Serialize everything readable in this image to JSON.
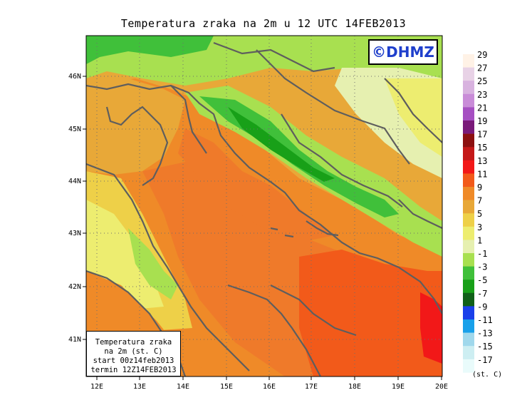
{
  "title": "Temperatura zraka na 2m u 12 UTC 14FEB2013",
  "watermark": "©DHMZ",
  "lat_labels": [
    "46N",
    "45N",
    "44N",
    "43N",
    "42N",
    "41N"
  ],
  "lon_labels": [
    "12E",
    "13E",
    "14E",
    "15E",
    "16E",
    "17E",
    "18E",
    "19E",
    "20E"
  ],
  "colorbar": {
    "labels": [
      "29",
      "27",
      "25",
      "23",
      "21",
      "19",
      "17",
      "15",
      "13",
      "11",
      "9",
      "7",
      "5",
      "3",
      "1",
      "-1",
      "-3",
      "-5",
      "-7",
      "-9",
      "-11",
      "-13",
      "-15",
      "-17"
    ],
    "colors": [
      "#fff2e6",
      "#e8d2e6",
      "#d8b2df",
      "#c98cd8",
      "#a64fc2",
      "#7a1a7a",
      "#8c1010",
      "#c41818",
      "#f21818",
      "#f25a1a",
      "#ef8a28",
      "#e8a838",
      "#eed048",
      "#eded70",
      "#e6f0b0",
      "#a8e050",
      "#40c03a",
      "#18a018",
      "#106018",
      "#1a40ea",
      "#18a0ea",
      "#a0d8ec",
      "#cdeef2",
      "#e9fbfb"
    ],
    "unit": "(st. C)"
  },
  "infobox": {
    "line1": "Temperatura zraka",
    "line2": "na 2m (st. C)",
    "line3": "start 00z14feb2013",
    "line4": "termin 12Z14FEB2013"
  }
}
